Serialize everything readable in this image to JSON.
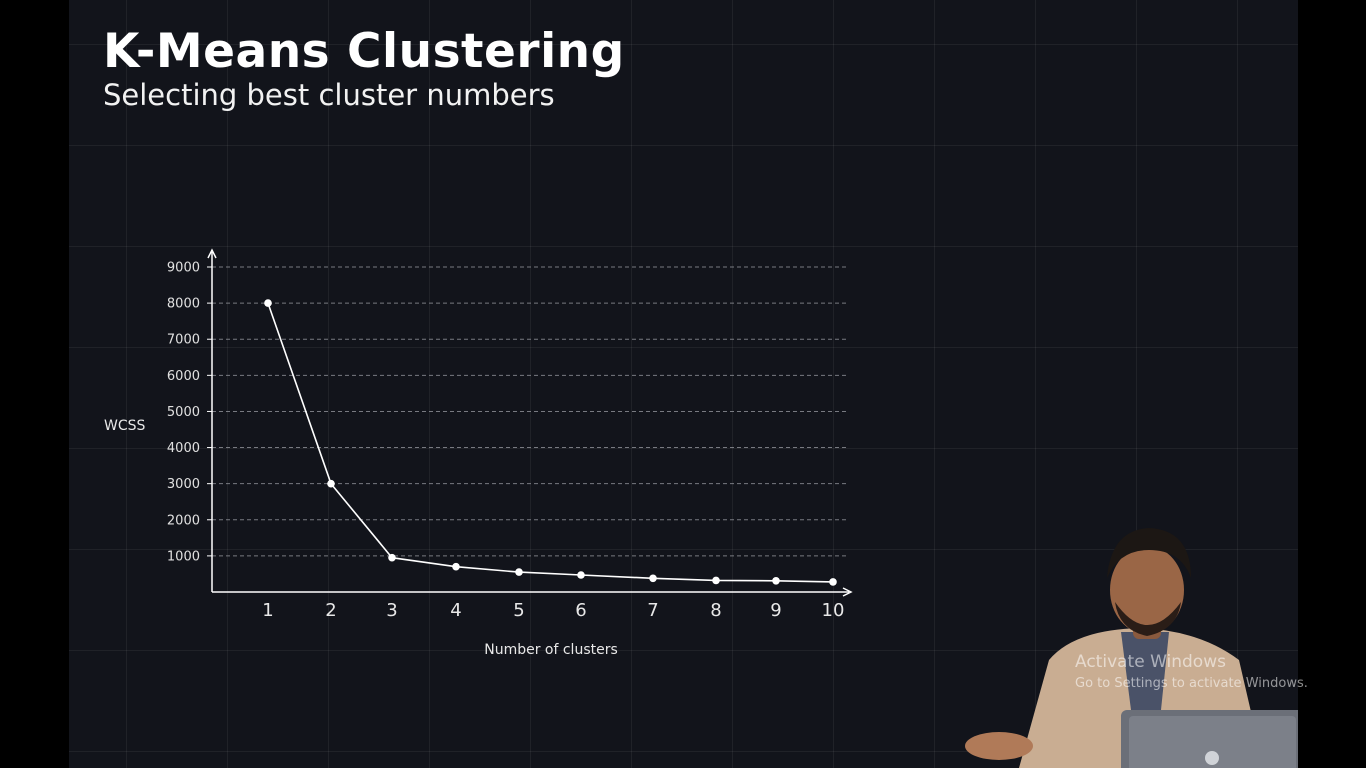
{
  "title": "K-Means Clustering",
  "subtitle": "Selecting best cluster numbers",
  "watermark": {
    "line1": "Activate Windows",
    "line2": "Go to Settings to activate Windows."
  },
  "presenter": {
    "icon": "presenter-video-icon"
  },
  "colors": {
    "background": "#12141b",
    "grid": "#2a2d35",
    "line": "#ffffff",
    "text": "#ffffff"
  },
  "chart_data": {
    "type": "line",
    "title": "",
    "xlabel": "Number of clusters",
    "ylabel": "WCSS",
    "x": [
      1,
      2,
      3,
      4,
      5,
      6,
      7,
      8,
      9,
      10
    ],
    "series": [
      {
        "values": [
          8000,
          3000,
          950,
          700,
          550,
          470,
          380,
          320,
          310,
          280
        ]
      }
    ],
    "yticks": [
      1000,
      2000,
      3000,
      4000,
      5000,
      6000,
      7000,
      8000,
      9000
    ],
    "xticks": [
      "1",
      "2",
      "3",
      "4",
      "5",
      "6",
      "7",
      "8",
      "9",
      "10"
    ],
    "ylim": [
      0,
      9000
    ],
    "grid": "horizontal dashed",
    "legend": "none"
  }
}
